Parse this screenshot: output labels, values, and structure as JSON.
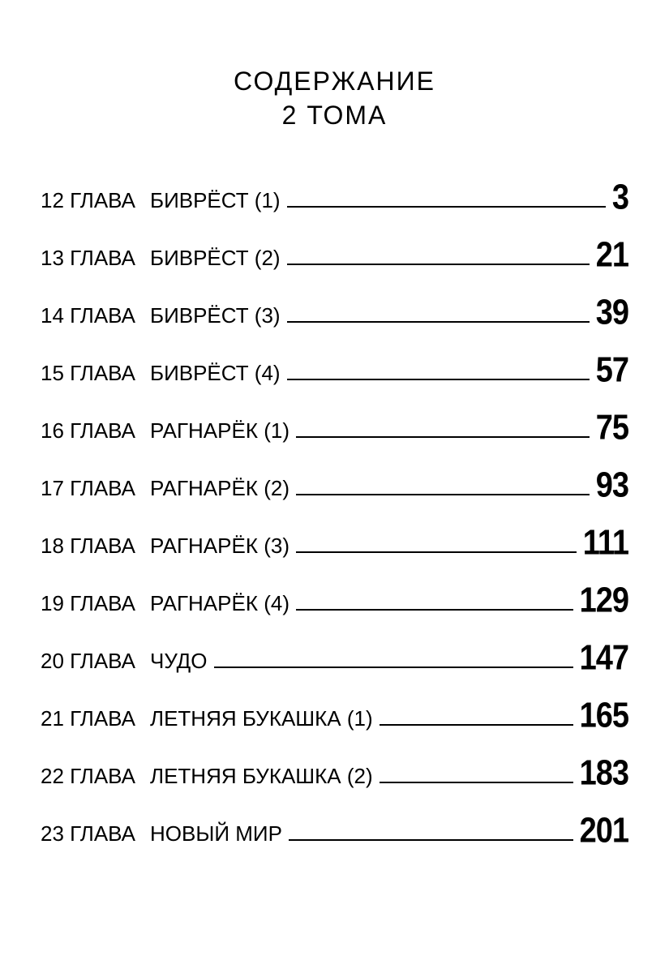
{
  "header": {
    "line1": "СОДЕРЖАНИЕ",
    "line2": "2 ТОМА"
  },
  "style": {
    "background": "#ffffff",
    "text_color": "#000000",
    "title_fontsize": 32,
    "chapter_fontsize": 26,
    "page_fontsize": 38,
    "page_font_weight": 900,
    "leader_thickness": 2,
    "row_gap": 28
  },
  "toc": [
    {
      "num": "12 ГЛАВА",
      "title": "БИВРЁСТ (1)",
      "page": "3"
    },
    {
      "num": "13 ГЛАВА",
      "title": "БИВРЁСТ (2)",
      "page": "21"
    },
    {
      "num": "14 ГЛАВА",
      "title": "БИВРЁСТ (3)",
      "page": "39"
    },
    {
      "num": "15 ГЛАВА",
      "title": "БИВРЁСТ (4)",
      "page": "57"
    },
    {
      "num": "16 ГЛАВА",
      "title": "РАГНАРЁК (1)",
      "page": "75"
    },
    {
      "num": "17 ГЛАВА",
      "title": "РАГНАРЁК (2)",
      "page": "93"
    },
    {
      "num": "18 ГЛАВА",
      "title": "РАГНАРЁК (3)",
      "page": "111"
    },
    {
      "num": "19 ГЛАВА",
      "title": "РАГНАРЁК (4)",
      "page": "129"
    },
    {
      "num": "20 ГЛАВА",
      "title": "ЧУДО",
      "page": "147"
    },
    {
      "num": "21 ГЛАВА",
      "title": "ЛЕТНЯЯ БУКАШКА (1)",
      "page": "165"
    },
    {
      "num": "22 ГЛАВА",
      "title": "ЛЕТНЯЯ БУКАШКА (2)",
      "page": "183"
    },
    {
      "num": "23 ГЛАВА",
      "title": "НОВЫЙ МИР",
      "page": "201"
    }
  ]
}
